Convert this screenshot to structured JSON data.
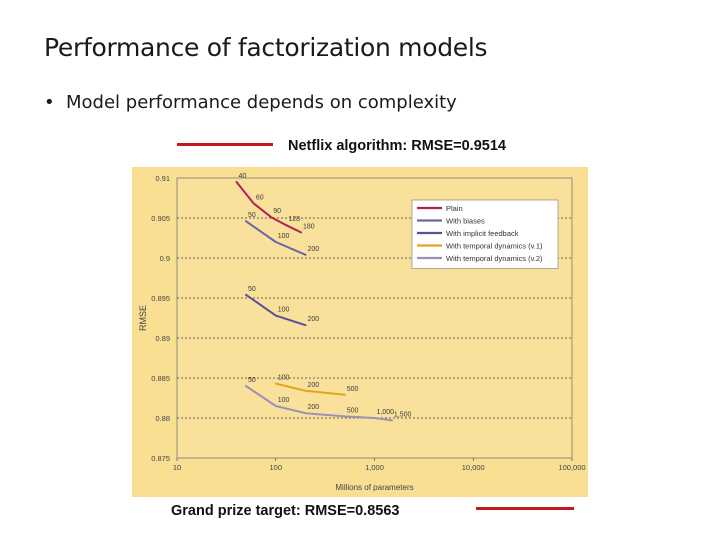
{
  "slide": {
    "title": "Performance of factorization models",
    "bullet": "Model performance depends on complexity"
  },
  "references": {
    "top_label": "Netflix algorithm: RMSE=0.9514",
    "bottom_label": "Grand prize target: RMSE=0.8563",
    "line_color": "#c8171e"
  },
  "colors": {
    "chart_background": "#f8df92",
    "plot_background": "#f9e19c",
    "legend_background": "#ffffff"
  },
  "chart_data": {
    "type": "line",
    "title": "",
    "xlabel": "Millions of parameters",
    "ylabel": "RMSE",
    "xscale": "log",
    "xlim": [
      10,
      100000
    ],
    "ylim": [
      0.875,
      0.91
    ],
    "xticks": [
      10,
      100,
      1000,
      10000,
      100000
    ],
    "xtick_labels": [
      "10",
      "100",
      "1,000",
      "10,000",
      "100,000"
    ],
    "yticks": [
      0.875,
      0.88,
      0.885,
      0.89,
      0.895,
      0.9,
      0.905,
      0.91
    ],
    "ytick_labels": [
      "0.875",
      "0.88",
      "0.885",
      "0.89",
      "0.895",
      "0.9",
      "0.905",
      "0.91"
    ],
    "grid": "horizontal dashed",
    "legend_position": "top-right",
    "series": [
      {
        "name": "Plain",
        "color": "#b0205a",
        "x": [
          40,
          60,
          90,
          128,
          180
        ],
        "y": [
          0.9095,
          0.9068,
          0.9051,
          0.9041,
          0.9032
        ],
        "labels": [
          "40",
          "60",
          "90",
          "128",
          "180"
        ]
      },
      {
        "name": "With biases",
        "color": "#6d63a8",
        "x": [
          50,
          100,
          200
        ],
        "y": [
          0.9046,
          0.902,
          0.9004
        ],
        "labels": [
          "50",
          "100",
          "200"
        ]
      },
      {
        "name": "With implicit feedback",
        "color": "#5a4f99",
        "x": [
          50,
          100,
          200
        ],
        "y": [
          0.8954,
          0.8928,
          0.8916
        ],
        "labels": [
          "50",
          "100",
          "200"
        ]
      },
      {
        "name": "With temporal dynamics (v.1)",
        "color": "#e7a21c",
        "x": [
          100,
          200,
          500
        ],
        "y": [
          0.8843,
          0.8834,
          0.8829
        ],
        "labels": [
          "100",
          "200",
          "500"
        ]
      },
      {
        "name": "With temporal dynamics (v.2)",
        "color": "#9b91b8",
        "x": [
          50,
          100,
          200,
          500,
          1000,
          1500
        ],
        "y": [
          0.884,
          0.8815,
          0.8806,
          0.8802,
          0.88,
          0.8797
        ],
        "labels": [
          "50",
          "100",
          "200",
          "500",
          "1,000",
          "1,500"
        ]
      }
    ]
  }
}
